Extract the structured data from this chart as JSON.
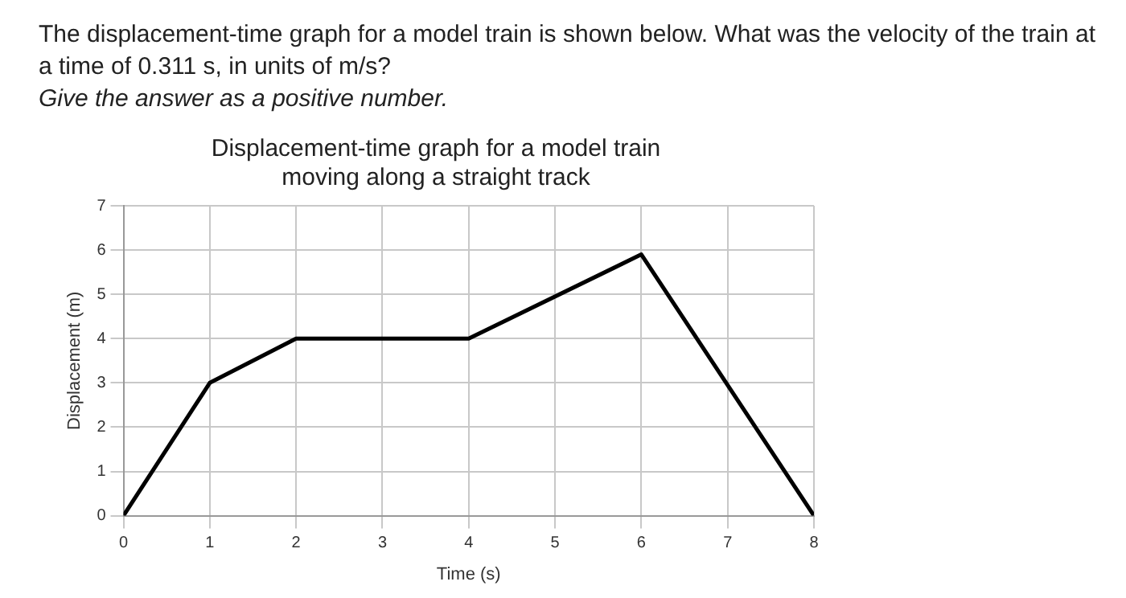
{
  "chart_data": {
    "type": "line",
    "title": [
      "Displacement-time graph for a model train",
      "moving along a straight track"
    ],
    "annotations": [
      "The displacement-time graph for a model train is shown below. What was the velocity of the train at a time of 0.311 s, in units of m/s?",
      "Give the answer as a positive number."
    ],
    "xlabel": "Time (s)",
    "ylabel": "Displacement (m)",
    "x": [
      0,
      1,
      2,
      4,
      6,
      8
    ],
    "series": [
      {
        "color": "#000000",
        "values": [
          0,
          3,
          4,
          4,
          5.9,
          0
        ]
      }
    ],
    "xlim": [
      0,
      8
    ],
    "xticks": [
      0,
      1,
      2,
      3,
      4,
      5,
      6,
      7,
      8
    ],
    "ylim": [
      0,
      7
    ],
    "yticks": [
      0,
      1,
      2,
      3,
      4,
      5,
      6,
      7
    ],
    "grid": true,
    "legend": false,
    "marker": "none",
    "line_style": "solid"
  }
}
